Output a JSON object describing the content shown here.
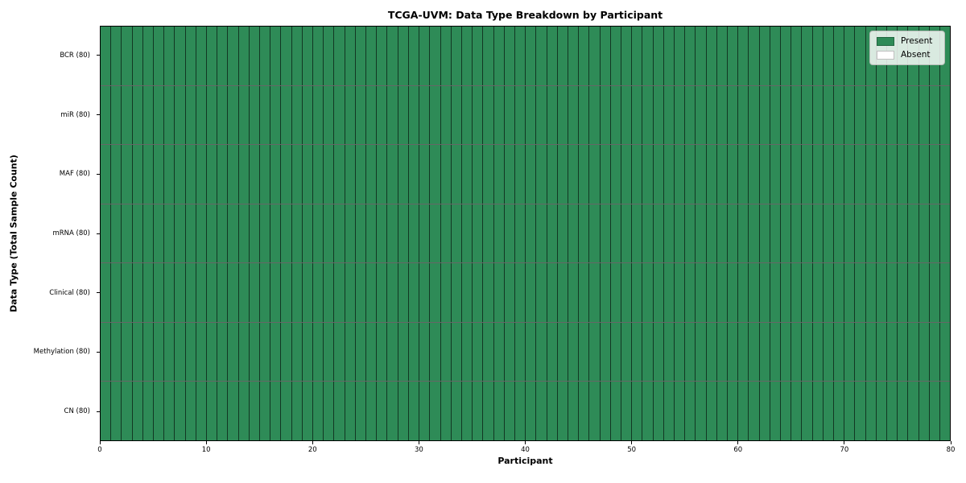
{
  "figure": {
    "title": "TCGA-UVM: Data Type Breakdown by Participant",
    "xlabel": "Participant",
    "ylabel": "Data Type (Total Sample Count)"
  },
  "legend": {
    "items": [
      {
        "label": "Present",
        "color": "#2e8b57"
      },
      {
        "label": "Absent",
        "color": "#ffffff"
      }
    ]
  },
  "chart_data": {
    "type": "heatmap",
    "title": "TCGA-UVM: Data Type Breakdown by Participant",
    "xlabel": "Participant",
    "ylabel": "Data Type (Total Sample Count)",
    "xlim": [
      0,
      80
    ],
    "x_ticks": [
      0,
      10,
      20,
      30,
      40,
      50,
      60,
      70,
      80
    ],
    "n_participants": 80,
    "categories": [
      "BCR (80)",
      "miR (80)",
      "MAF (80)",
      "mRNA (80)",
      "Clinical (80)",
      "Methylation (80)",
      "CN (80)"
    ],
    "rows": [
      {
        "label": "BCR (80)",
        "data_type": "BCR",
        "total_samples": 80,
        "present_participants": 80,
        "absent_participants": 0
      },
      {
        "label": "miR (80)",
        "data_type": "miR",
        "total_samples": 80,
        "present_participants": 80,
        "absent_participants": 0
      },
      {
        "label": "MAF (80)",
        "data_type": "MAF",
        "total_samples": 80,
        "present_participants": 80,
        "absent_participants": 0
      },
      {
        "label": "mRNA (80)",
        "data_type": "mRNA",
        "total_samples": 80,
        "present_participants": 80,
        "absent_participants": 0
      },
      {
        "label": "Clinical (80)",
        "data_type": "Clinical",
        "total_samples": 80,
        "present_participants": 80,
        "absent_participants": 0
      },
      {
        "label": "Methylation (80)",
        "data_type": "Methylation",
        "total_samples": 80,
        "present_participants": 80,
        "absent_participants": 0
      },
      {
        "label": "CN (80)",
        "data_type": "CN",
        "total_samples": 80,
        "present_participants": 80,
        "absent_participants": 0
      }
    ],
    "all_cells_present": true,
    "legend": [
      {
        "label": "Present",
        "color": "#2e8b57"
      },
      {
        "label": "Absent",
        "color": "#ffffff"
      }
    ],
    "legend_position": "upper right",
    "grid": false,
    "colors": {
      "present": "#2e8b57",
      "absent": "#ffffff",
      "cell_border": "rgba(0,0,0,0.6)",
      "frame": "#000000"
    }
  }
}
